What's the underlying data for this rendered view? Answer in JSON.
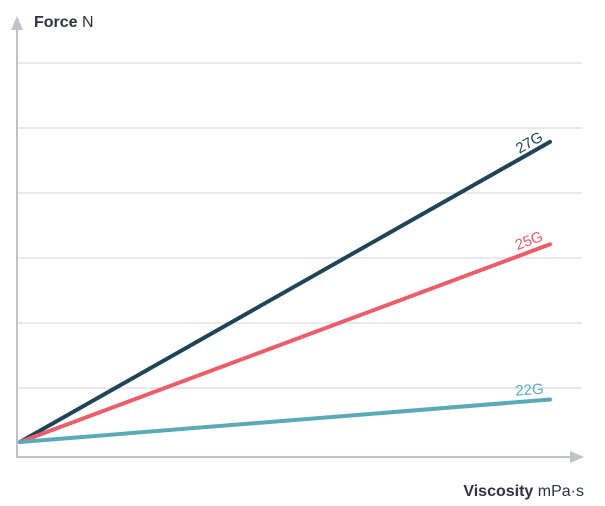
{
  "chart_data": {
    "type": "line",
    "xlabel": "Viscosity",
    "xunit": "mPa·s",
    "ylabel": "Force",
    "yunit": "N",
    "grid": true,
    "xlim": [
      0,
      1
    ],
    "ylim": [
      0,
      1
    ],
    "colors": {
      "axis": "#bfc3c7",
      "grid": "#d9dcdf",
      "text": "#2b3440"
    },
    "series": [
      {
        "name": "27G",
        "color": "#1f4457",
        "x": [
          0,
          1
        ],
        "y": [
          0,
          0.756
        ]
      },
      {
        "name": "25G",
        "color": "#ec5d6a",
        "x": [
          0,
          1
        ],
        "y": [
          0,
          0.498
        ]
      },
      {
        "name": "22G",
        "color": "#5aa9b7",
        "x": [
          0,
          1
        ],
        "y": [
          0,
          0.107
        ]
      }
    ]
  }
}
